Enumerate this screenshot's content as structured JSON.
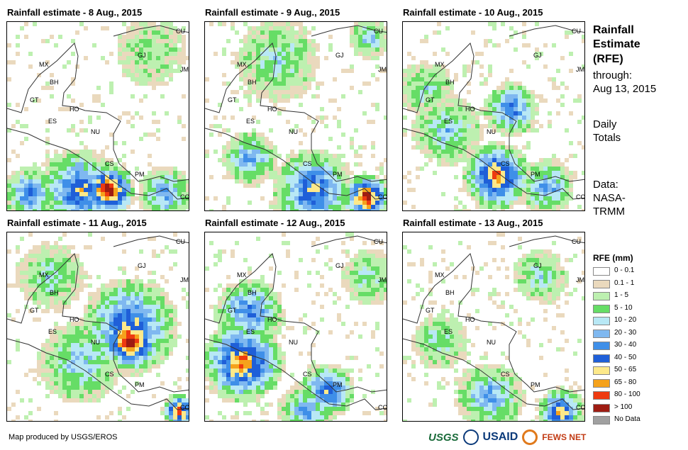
{
  "panels": [
    {
      "title": "Rainfall estimate - 8 Aug., 2015"
    },
    {
      "title": "Rainfall estimate - 9 Aug., 2015"
    },
    {
      "title": "Rainfall estimate - 10 Aug., 2015"
    },
    {
      "title": "Rainfall estimate - 11 Aug., 2015"
    },
    {
      "title": "Rainfall estimate - 12 Aug., 2015"
    },
    {
      "title": "Rainfall estimate - 13 Aug., 2015"
    }
  ],
  "country_labels": {
    "mx": "MX",
    "bh": "BH",
    "gt": "GT",
    "ho": "HO",
    "es": "ES",
    "nu": "NU",
    "cs": "CS",
    "pm": "PM",
    "co": "CO",
    "cu": "CU",
    "gj": "GJ",
    "jm": "JM"
  },
  "side": {
    "title_line1": "Rainfall",
    "title_line2": "Estimate",
    "title_line3": "(RFE)",
    "through": "through:",
    "date": "Aug 13, 2015",
    "daily1": "Daily",
    "daily2": "Totals",
    "data1": "Data:",
    "data2": "NASA-",
    "data3": "TRMM"
  },
  "legend": {
    "title": "RFE (mm)",
    "items": [
      {
        "label": "0 - 0.1",
        "color": "#ffffff"
      },
      {
        "label": "0.1 - 1",
        "color": "#ead9bd"
      },
      {
        "label": "1 - 5",
        "color": "#bdf0b0"
      },
      {
        "label": "5 - 10",
        "color": "#66dd66"
      },
      {
        "label": "10 - 20",
        "color": "#b8e8f5"
      },
      {
        "label": "20 - 30",
        "color": "#7fb8f0"
      },
      {
        "label": "30 - 40",
        "color": "#3f8fe8"
      },
      {
        "label": "40 - 50",
        "color": "#1f5fd8"
      },
      {
        "label": "50 - 65",
        "color": "#fde98a"
      },
      {
        "label": "65 - 80",
        "color": "#f5a21c"
      },
      {
        "label": "80 - 100",
        "color": "#ee3a10"
      },
      {
        "label": "> 100",
        "color": "#9e1c12"
      },
      {
        "label": "No Data",
        "color": "#a0a0a0"
      }
    ]
  },
  "footer": "Map produced by USGS/EROS",
  "logos": {
    "usgs": "USGS",
    "usaid": "USAID",
    "fews": "FEWS NET"
  }
}
